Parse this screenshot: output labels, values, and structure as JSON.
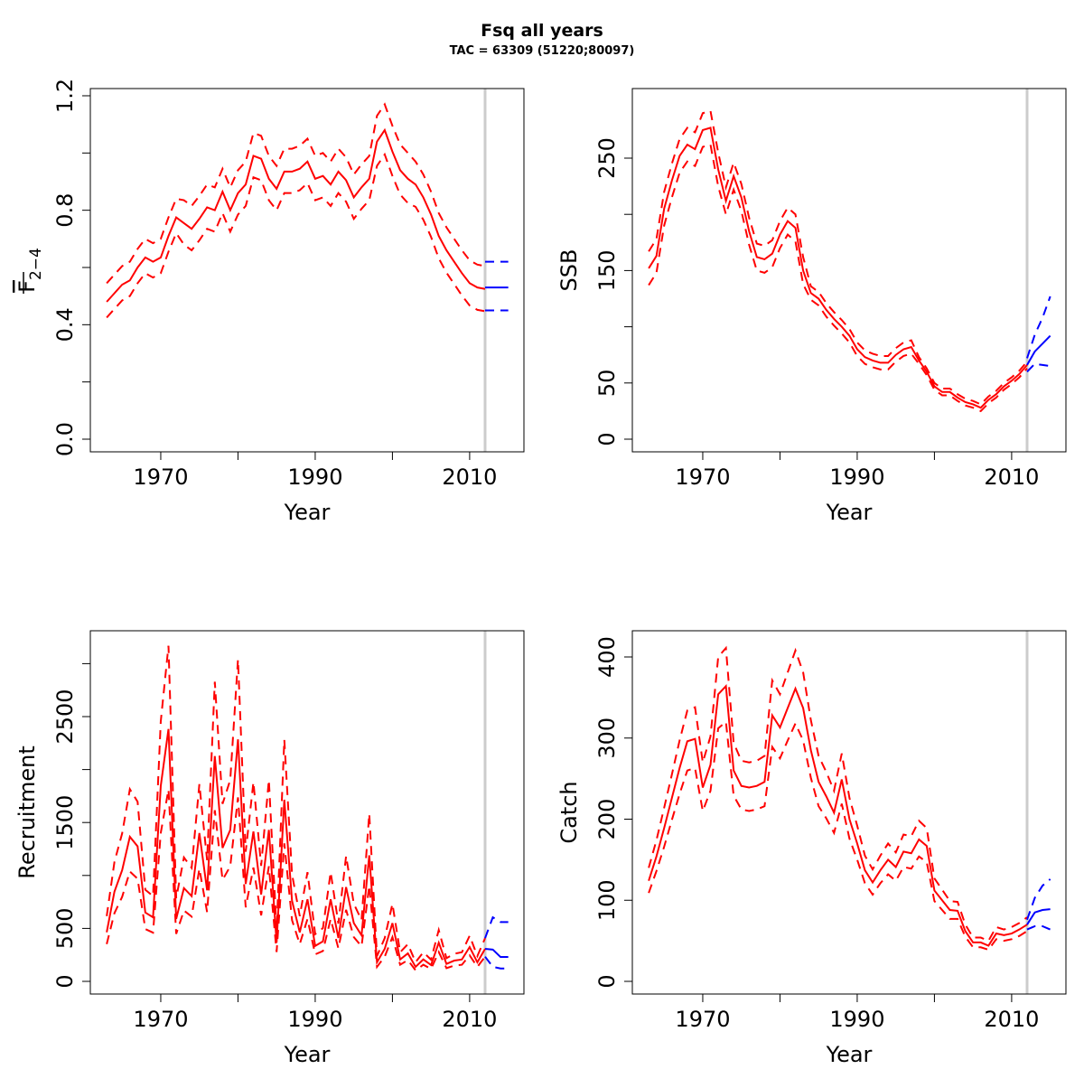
{
  "title": "Fsq all years",
  "subtitle": "TAC = 63309 (51220;80097)",
  "colors": {
    "history": "#ff0000",
    "projection": "#0000ff",
    "assessment_year_line": "#cccccc"
  },
  "chart_data": [
    {
      "type": "line",
      "ylabel_main": "F",
      "ylabel_sub": "2−4",
      "xlabel": "Year",
      "xticks": [
        1970,
        1980,
        1990,
        2000,
        2010
      ],
      "xtick_labels": [
        "1970",
        "",
        "1990",
        "",
        "2010"
      ],
      "yticks": [
        0,
        0.2,
        0.4,
        0.6,
        0.8,
        1.0,
        1.2
      ],
      "ytick_labels": [
        "0.0",
        "",
        "0.4",
        "",
        "0.8",
        "",
        "1.2"
      ],
      "vline_year": 2012,
      "history": {
        "start_year": 1963,
        "median": [
          0.48,
          0.51,
          0.54,
          0.555,
          0.6,
          0.635,
          0.62,
          0.635,
          0.71,
          0.775,
          0.755,
          0.735,
          0.77,
          0.81,
          0.8,
          0.865,
          0.8,
          0.86,
          0.89,
          0.99,
          0.98,
          0.91,
          0.875,
          0.935,
          0.935,
          0.945,
          0.97,
          0.91,
          0.92,
          0.89,
          0.935,
          0.905,
          0.845,
          0.88,
          0.91,
          1.04,
          1.08,
          1.005,
          0.94,
          0.91,
          0.89,
          0.845,
          0.785,
          0.71,
          0.66,
          0.62,
          0.58,
          0.545,
          0.53,
          0.525
        ],
        "upper": [
          0.545,
          0.575,
          0.605,
          0.62,
          0.665,
          0.7,
          0.685,
          0.7,
          0.775,
          0.84,
          0.835,
          0.815,
          0.85,
          0.89,
          0.88,
          0.945,
          0.88,
          0.94,
          0.97,
          1.07,
          1.06,
          0.99,
          0.955,
          1.015,
          1.015,
          1.025,
          1.05,
          0.99,
          1.0,
          0.97,
          1.015,
          0.985,
          0.925,
          0.96,
          0.99,
          1.13,
          1.17,
          1.095,
          1.03,
          1.0,
          0.97,
          0.925,
          0.865,
          0.79,
          0.74,
          0.7,
          0.66,
          0.625,
          0.61,
          0.605
        ],
        "lower": [
          0.425,
          0.455,
          0.485,
          0.5,
          0.545,
          0.58,
          0.565,
          0.58,
          0.655,
          0.72,
          0.68,
          0.66,
          0.695,
          0.735,
          0.725,
          0.79,
          0.725,
          0.785,
          0.815,
          0.915,
          0.905,
          0.835,
          0.8,
          0.86,
          0.86,
          0.87,
          0.895,
          0.835,
          0.845,
          0.815,
          0.86,
          0.83,
          0.77,
          0.805,
          0.835,
          0.955,
          0.995,
          0.92,
          0.855,
          0.825,
          0.812,
          0.767,
          0.707,
          0.632,
          0.582,
          0.542,
          0.502,
          0.467,
          0.452,
          0.447
        ]
      },
      "projection": {
        "years": [
          2012,
          2013,
          2014,
          2015
        ],
        "median": [
          0.53,
          0.53,
          0.53,
          0.53
        ],
        "upper": [
          0.62,
          0.62,
          0.62,
          0.62
        ],
        "lower": [
          0.45,
          0.45,
          0.45,
          0.45
        ]
      }
    },
    {
      "type": "line",
      "ylabel_main": "SSB",
      "xlabel": "Year",
      "xticks": [
        1970,
        1980,
        1990,
        2000,
        2010
      ],
      "xtick_labels": [
        "1970",
        "",
        "1990",
        "",
        "2010"
      ],
      "yticks": [
        0,
        50,
        100,
        150,
        200,
        250
      ],
      "ytick_labels": [
        "0",
        "50",
        "",
        "150",
        "",
        "250"
      ],
      "vline_year": 2012,
      "history": {
        "start_year": 1963,
        "median": [
          152,
          163,
          205,
          230,
          252,
          262,
          258,
          275,
          277,
          240,
          212,
          234,
          215,
          185,
          162,
          160,
          165,
          182,
          194,
          188,
          150,
          130,
          125,
          115,
          107,
          100,
          92,
          80,
          73,
          70,
          68,
          68,
          75,
          80,
          82,
          70,
          60,
          47,
          42,
          42,
          37,
          33,
          31,
          28,
          35,
          40,
          47,
          52,
          58,
          66
        ],
        "upper": [
          167,
          178,
          220,
          245,
          267,
          277,
          273,
          290,
          292,
          255,
          224,
          246,
          227,
          197,
          174,
          172,
          177,
          194,
          206,
          200,
          162,
          136,
          131,
          121,
          113,
          106,
          98,
          86,
          79,
          76,
          74,
          74,
          81,
          86,
          88,
          73,
          63,
          50,
          45,
          45,
          40,
          36,
          34,
          31,
          38,
          43,
          50,
          55,
          61,
          69
        ],
        "lower": [
          137,
          148,
          190,
          215,
          237,
          247,
          243,
          260,
          262,
          225,
          200,
          222,
          203,
          173,
          150,
          148,
          153,
          170,
          182,
          176,
          138,
          124,
          119,
          109,
          101,
          94,
          86,
          74,
          67,
          64,
          62,
          62,
          69,
          74,
          76,
          67,
          57,
          44,
          39,
          39,
          34,
          30,
          28,
          25,
          32,
          37,
          44,
          49,
          55,
          63
        ]
      },
      "projection": {
        "years": [
          2012,
          2013,
          2014,
          2015
        ],
        "median": [
          66,
          78,
          85,
          92
        ],
        "upper": [
          72,
          93,
          108,
          127
        ],
        "lower": [
          60,
          67,
          66,
          65
        ]
      }
    },
    {
      "type": "line",
      "ylabel_main": "Recruitment",
      "xlabel": "Year",
      "xticks": [
        1970,
        1980,
        1990,
        2000,
        2010
      ],
      "xtick_labels": [
        "1970",
        "",
        "1990",
        "",
        "2010"
      ],
      "yticks": [
        0,
        500,
        1000,
        1500,
        2000,
        2500,
        3000
      ],
      "ytick_labels": [
        "0",
        "500",
        "",
        "1500",
        "",
        "2500",
        ""
      ],
      "vline_year": 2012,
      "history": {
        "start_year": 1963,
        "median": [
          463,
          847,
          1050,
          1365,
          1275,
          650,
          605,
          1845,
          2383,
          590,
          880,
          805,
          1400,
          860,
          2127,
          1260,
          1430,
          2285,
          920,
          1415,
          820,
          1430,
          365,
          1715,
          760,
          463,
          775,
          335,
          378,
          775,
          410,
          890,
          550,
          435,
          1190,
          180,
          307,
          550,
          207,
          264,
          137,
          207,
          154,
          365,
          165,
          196,
          207,
          324,
          180,
          307
        ],
        "upper": [
          616,
          1127,
          1397,
          1815,
          1696,
          865,
          805,
          2454,
          3169,
          785,
          1170,
          1071,
          1862,
          1144,
          2829,
          1676,
          1902,
          3039,
          1224,
          1882,
          1091,
          1902,
          485,
          2281,
          1011,
          616,
          1031,
          446,
          503,
          1031,
          545,
          1184,
          732,
          579,
          1583,
          239,
          408,
          732,
          275,
          351,
          182,
          275,
          205,
          485,
          219,
          261,
          275,
          431,
          239,
          408
        ],
        "lower": [
          352,
          644,
          798,
          1037,
          969,
          494,
          460,
          1402,
          1811,
          448,
          669,
          612,
          1064,
          654,
          1616,
          958,
          1087,
          1737,
          699,
          1075,
          623,
          1087,
          277,
          1303,
          578,
          352,
          589,
          255,
          287,
          589,
          312,
          676,
          418,
          331,
          904,
          137,
          233,
          418,
          157,
          201,
          104,
          157,
          117,
          277,
          125,
          149,
          157,
          246,
          137,
          233
        ]
      },
      "projection": {
        "years": [
          2012,
          2013,
          2014,
          2015
        ],
        "median": [
          307,
          300,
          230,
          230
        ],
        "upper": [
          408,
          605,
          560,
          560
        ],
        "lower": [
          233,
          137,
          122,
          122
        ]
      }
    },
    {
      "type": "line",
      "ylabel_main": "Catch",
      "xlabel": "Year",
      "xticks": [
        1970,
        1980,
        1990,
        2000,
        2010
      ],
      "xtick_labels": [
        "1970",
        "",
        "1990",
        "",
        "2010"
      ],
      "yticks": [
        0,
        100,
        200,
        300,
        400
      ],
      "ytick_labels": [
        "0",
        "100",
        "200",
        "300",
        "400"
      ],
      "vline_year": 2012,
      "history": {
        "start_year": 1963,
        "median": [
          124,
          154,
          189,
          226,
          263,
          296,
          299,
          239,
          267,
          354,
          364,
          260,
          241,
          239,
          241,
          246,
          328,
          313,
          337,
          361,
          337,
          285,
          246,
          228,
          208,
          249,
          200,
          170,
          137,
          122,
          137,
          150,
          141,
          160,
          158,
          175,
          167,
          112,
          100,
          88,
          87,
          62,
          48,
          48,
          44,
          59,
          57,
          59,
          64,
          70
        ],
        "upper": [
          140,
          174,
          214,
          255,
          297,
          334,
          338,
          270,
          302,
          400,
          411,
          294,
          272,
          270,
          272,
          278,
          371,
          354,
          381,
          408,
          381,
          322,
          278,
          258,
          235,
          281,
          226,
          192,
          155,
          138,
          155,
          170,
          159,
          181,
          179,
          198,
          189,
          127,
          113,
          99,
          98,
          70,
          54,
          54,
          50,
          67,
          64,
          67,
          72,
          79
        ],
        "lower": [
          109,
          136,
          166,
          199,
          231,
          260,
          263,
          210,
          235,
          312,
          320,
          229,
          212,
          210,
          212,
          216,
          289,
          275,
          297,
          318,
          297,
          251,
          216,
          201,
          183,
          219,
          176,
          150,
          121,
          107,
          121,
          132,
          124,
          141,
          139,
          154,
          147,
          99,
          88,
          77,
          77,
          55,
          42,
          42,
          39,
          52,
          50,
          52,
          56,
          62
        ]
      },
      "projection": {
        "years": [
          2012,
          2013,
          2014,
          2015
        ],
        "median": [
          70,
          85,
          88,
          89
        ],
        "upper": [
          76,
          103,
          118,
          126
        ],
        "lower": [
          64,
          68,
          68,
          64
        ]
      }
    }
  ]
}
